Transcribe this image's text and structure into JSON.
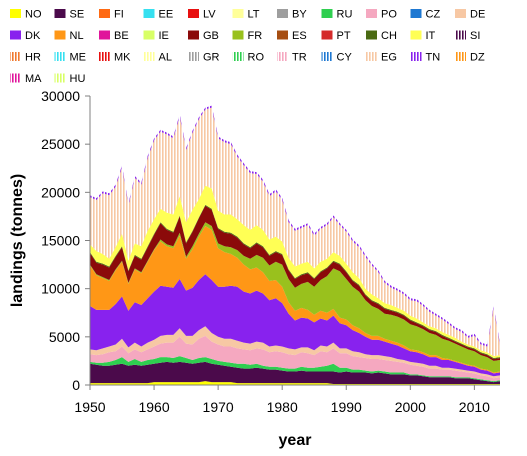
{
  "chart_data": {
    "type": "area",
    "stacked": true,
    "xlabel": "year",
    "ylabel": "landings (tonnes)",
    "xlim": [
      1950,
      2014
    ],
    "ylim": [
      0,
      30000
    ],
    "x_ticks": [
      1950,
      1960,
      1970,
      1980,
      1990,
      2000,
      2010
    ],
    "y_ticks": [
      0,
      5000,
      10000,
      15000,
      20000,
      25000,
      30000
    ],
    "grid": false,
    "legend_position": "top",
    "note": "",
    "legend": [
      {
        "name": "NO",
        "color": "#ffff00",
        "pattern": "solid"
      },
      {
        "name": "SE",
        "color": "#4b0a4b",
        "pattern": "solid"
      },
      {
        "name": "FI",
        "color": "#ff6a13",
        "pattern": "solid"
      },
      {
        "name": "EE",
        "color": "#36e0f0",
        "pattern": "solid"
      },
      {
        "name": "LV",
        "color": "#e81010",
        "pattern": "solid"
      },
      {
        "name": "LT",
        "color": "#ffff9a",
        "pattern": "solid"
      },
      {
        "name": "BY",
        "color": "#9e9e9e",
        "pattern": "solid"
      },
      {
        "name": "RU",
        "color": "#2fcf50",
        "pattern": "solid"
      },
      {
        "name": "PO",
        "color": "#f5a8c0",
        "pattern": "solid"
      },
      {
        "name": "CZ",
        "color": "#1e78d2",
        "pattern": "solid"
      },
      {
        "name": "DE",
        "color": "#f7c8a4",
        "pattern": "solid"
      },
      {
        "name": "DK",
        "color": "#8822ee",
        "pattern": "solid"
      },
      {
        "name": "NL",
        "color": "#ff9716",
        "pattern": "solid"
      },
      {
        "name": "BE",
        "color": "#e0159b",
        "pattern": "solid"
      },
      {
        "name": "IE",
        "color": "#d8ff66",
        "pattern": "solid"
      },
      {
        "name": "GB",
        "color": "#8b0a0a",
        "pattern": "solid"
      },
      {
        "name": "FR",
        "color": "#99c11d",
        "pattern": "solid"
      },
      {
        "name": "ES",
        "color": "#a64e12",
        "pattern": "solid"
      },
      {
        "name": "PT",
        "color": "#d42a2a",
        "pattern": "solid"
      },
      {
        "name": "CH",
        "color": "#4a6a12",
        "pattern": "solid"
      },
      {
        "name": "IT",
        "color": "#ffff55",
        "pattern": "solid"
      },
      {
        "name": "SI",
        "color": "#4b0a4b",
        "pattern": "striped"
      },
      {
        "name": "HR",
        "color": "#f07a30",
        "pattern": "striped"
      },
      {
        "name": "ME",
        "color": "#36e0f0",
        "pattern": "striped"
      },
      {
        "name": "MK",
        "color": "#e81010",
        "pattern": "striped"
      },
      {
        "name": "AL",
        "color": "#ffff9a",
        "pattern": "striped"
      },
      {
        "name": "GR",
        "color": "#9e9e9e",
        "pattern": "striped"
      },
      {
        "name": "RO",
        "color": "#2fcf50",
        "pattern": "striped"
      },
      {
        "name": "TR",
        "color": "#f5a8c0",
        "pattern": "striped"
      },
      {
        "name": "CY",
        "color": "#1e78d2",
        "pattern": "striped"
      },
      {
        "name": "EG",
        "color": "#f7c8a4",
        "pattern": "striped"
      },
      {
        "name": "TN",
        "color": "#8822ee",
        "pattern": "striped"
      },
      {
        "name": "DZ",
        "color": "#ff9716",
        "pattern": "striped"
      },
      {
        "name": "MA",
        "color": "#e0159b",
        "pattern": "striped"
      },
      {
        "name": "HU",
        "color": "#d8ff66",
        "pattern": "striped"
      }
    ],
    "x": [
      1950,
      1951,
      1952,
      1953,
      1954,
      1955,
      1956,
      1957,
      1958,
      1959,
      1960,
      1961,
      1962,
      1963,
      1964,
      1965,
      1966,
      1967,
      1968,
      1969,
      1970,
      1971,
      1972,
      1973,
      1974,
      1975,
      1976,
      1977,
      1978,
      1979,
      1980,
      1981,
      1982,
      1983,
      1984,
      1985,
      1986,
      1987,
      1988,
      1989,
      1990,
      1991,
      1992,
      1993,
      1994,
      1995,
      1996,
      1997,
      1998,
      1999,
      2000,
      2001,
      2002,
      2003,
      2004,
      2005,
      2006,
      2007,
      2008,
      2009,
      2010,
      2011,
      2012,
      2013,
      2014
    ],
    "series": [
      {
        "name": "NO",
        "color": "#ffff00",
        "pattern": "solid",
        "values": [
          200,
          200,
          200,
          200,
          200,
          200,
          200,
          200,
          200,
          200,
          300,
          300,
          300,
          300,
          300,
          300,
          300,
          300,
          400,
          300,
          300,
          300,
          300,
          200,
          200,
          200,
          200,
          200,
          200,
          200,
          200,
          200,
          200,
          200,
          200,
          200,
          200,
          200,
          100,
          100,
          100,
          100,
          100,
          100,
          100,
          100,
          100,
          100,
          100,
          100,
          100,
          100,
          100,
          100,
          100,
          100,
          100,
          100,
          100,
          100,
          100,
          100,
          100,
          100,
          100
        ]
      },
      {
        "name": "SE",
        "color": "#4b0a4b",
        "pattern": "solid",
        "values": [
          2000,
          1900,
          1800,
          1800,
          1900,
          2000,
          1800,
          1900,
          1800,
          1900,
          1900,
          2000,
          2100,
          2000,
          2100,
          2000,
          1900,
          2000,
          2000,
          1900,
          1800,
          1700,
          1600,
          1600,
          1500,
          1500,
          1600,
          1500,
          1400,
          1400,
          1300,
          1200,
          1200,
          1300,
          1200,
          1200,
          1200,
          1200,
          1300,
          1200,
          1300,
          1200,
          1200,
          1200,
          1100,
          1200,
          1100,
          1000,
          1000,
          1000,
          900,
          900,
          800,
          700,
          700,
          700,
          700,
          600,
          600,
          600,
          500,
          400,
          300,
          200,
          300
        ]
      },
      {
        "name": "RU",
        "color": "#2fcf50",
        "pattern": "solid",
        "values": [
          200,
          200,
          300,
          400,
          500,
          700,
          400,
          600,
          400,
          500,
          500,
          600,
          500,
          500,
          600,
          500,
          400,
          500,
          500,
          500,
          400,
          400,
          400,
          400,
          500,
          400,
          400,
          300,
          300,
          300,
          300,
          300,
          300,
          400,
          400,
          400,
          500,
          600,
          800,
          500,
          400,
          300,
          300,
          200,
          200,
          200,
          200,
          200,
          200,
          200,
          100,
          100,
          100,
          100,
          100,
          100,
          100,
          100,
          100,
          100,
          100,
          100,
          100,
          100,
          100
        ]
      },
      {
        "name": "PO",
        "color": "#f5a8c0",
        "pattern": "solid",
        "values": [
          800,
          800,
          900,
          1000,
          900,
          1100,
          900,
          1000,
          1000,
          1100,
          1300,
          1400,
          1500,
          1600,
          2000,
          1500,
          1600,
          2000,
          2200,
          1800,
          1700,
          1600,
          1700,
          1600,
          1500,
          1500,
          1600,
          1700,
          1500,
          1600,
          1600,
          1500,
          1400,
          1500,
          1500,
          1300,
          1600,
          1400,
          1600,
          1500,
          1500,
          1400,
          1300,
          1300,
          1300,
          1200,
          1200,
          1200,
          1100,
          1000,
          1000,
          900,
          900,
          800,
          800,
          700,
          700,
          700,
          600,
          500,
          500,
          400,
          400,
          300,
          300
        ]
      },
      {
        "name": "DE",
        "color": "#f7c8a4",
        "pattern": "solid",
        "values": [
          500,
          500,
          600,
          600,
          700,
          800,
          600,
          700,
          600,
          700,
          700,
          800,
          800,
          800,
          900,
          800,
          900,
          900,
          1000,
          900,
          800,
          800,
          800,
          800,
          700,
          700,
          700,
          700,
          600,
          600,
          600,
          600,
          600,
          500,
          600,
          500,
          600,
          600,
          600,
          500,
          500,
          500,
          500,
          400,
          400,
          400,
          400,
          400,
          300,
          300,
          300,
          300,
          300,
          300,
          300,
          200,
          200,
          200,
          200,
          200,
          200,
          200,
          200,
          200,
          200
        ]
      },
      {
        "name": "DK",
        "color": "#8822ee",
        "pattern": "solid",
        "values": [
          4500,
          4200,
          4000,
          3800,
          4200,
          4400,
          3800,
          4200,
          4300,
          4600,
          5000,
          5200,
          5000,
          4900,
          5100,
          4700,
          5000,
          5200,
          5400,
          5500,
          5200,
          5400,
          5500,
          5600,
          5300,
          5200,
          5300,
          5100,
          4800,
          4900,
          4500,
          3600,
          3000,
          3100,
          3000,
          2900,
          2800,
          2700,
          2800,
          2600,
          2400,
          2200,
          2000,
          1800,
          1600,
          1600,
          1500,
          1400,
          1400,
          1200,
          1100,
          1100,
          1000,
          900,
          900,
          800,
          800,
          700,
          600,
          500,
          500,
          400,
          400,
          300,
          300
        ]
      },
      {
        "name": "NL",
        "color": "#ff9716",
        "pattern": "solid",
        "values": [
          4200,
          3600,
          3300,
          3000,
          3500,
          3600,
          2800,
          3400,
          3300,
          3800,
          4300,
          4600,
          4200,
          4100,
          4500,
          3300,
          4000,
          4500,
          5000,
          5200,
          4000,
          3600,
          3300,
          3000,
          2800,
          2500,
          2400,
          2200,
          2000,
          1900,
          1700,
          1200,
          1000,
          1000,
          900,
          800,
          800,
          800,
          700,
          600,
          600,
          500,
          500,
          400,
          400,
          400,
          300,
          300,
          300,
          300,
          200,
          200,
          200,
          200,
          200,
          200,
          100,
          100,
          100,
          100,
          100,
          100,
          100,
          100,
          100
        ]
      },
      {
        "name": "FR",
        "color": "#99c11d",
        "pattern": "solid",
        "values": [
          100,
          100,
          100,
          100,
          100,
          100,
          100,
          100,
          100,
          100,
          100,
          200,
          200,
          200,
          300,
          200,
          300,
          300,
          400,
          400,
          500,
          600,
          700,
          800,
          900,
          1100,
          1300,
          1500,
          1600,
          1900,
          2300,
          2400,
          2400,
          2500,
          2900,
          2900,
          3200,
          3800,
          4200,
          4800,
          4200,
          4000,
          3800,
          3400,
          3100,
          2800,
          2600,
          2700,
          2700,
          2700,
          2600,
          2500,
          2400,
          2300,
          2100,
          2000,
          1900,
          1800,
          1700,
          1600,
          1500,
          1400,
          1300,
          1200,
          1200
        ]
      },
      {
        "name": "GB",
        "color": "#8b0a0a",
        "pattern": "solid",
        "values": [
          1200,
          1200,
          1300,
          1300,
          1300,
          1400,
          1200,
          1300,
          1300,
          1400,
          1500,
          1700,
          1500,
          1400,
          1700,
          1400,
          1500,
          1600,
          1700,
          1700,
          1500,
          1400,
          1400,
          1300,
          1200,
          1100,
          1200,
          1100,
          1000,
          1000,
          1000,
          900,
          900,
          900,
          900,
          800,
          800,
          800,
          700,
          700,
          700,
          600,
          600,
          500,
          500,
          500,
          500,
          400,
          400,
          400,
          400,
          300,
          300,
          300,
          300,
          300,
          200,
          200,
          200,
          200,
          200,
          200,
          200,
          200,
          200
        ]
      },
      {
        "name": "CH",
        "color": "#4a6a12",
        "pattern": "solid",
        "values": [
          100,
          100,
          100,
          100,
          100,
          100,
          100,
          100,
          100,
          100,
          100,
          100,
          100,
          100,
          100,
          100,
          100,
          100,
          100,
          100,
          100,
          100,
          100,
          100,
          100,
          100,
          100,
          100,
          100,
          100,
          100,
          100,
          100,
          100,
          100,
          100,
          100,
          100,
          100,
          100,
          100,
          100,
          100,
          100,
          100,
          100,
          100,
          100,
          100,
          100,
          100,
          100,
          100,
          100,
          100,
          100,
          100,
          100,
          100,
          100,
          100,
          100,
          100,
          100,
          100
        ]
      },
      {
        "name": "IT",
        "color": "#ffff55",
        "pattern": "solid",
        "values": [
          800,
          1100,
          1000,
          800,
          900,
          1300,
          1000,
          1200,
          1300,
          1600,
          1500,
          1400,
          1700,
          1800,
          2000,
          2100,
          2200,
          1900,
          2000,
          2100,
          1800,
          1800,
          1900,
          1800,
          1900,
          1800,
          1800,
          1700,
          1600,
          1500,
          1300,
          1200,
          1200,
          1100,
          1100,
          1000,
          1000,
          900,
          900,
          800,
          800,
          800,
          700,
          600,
          600,
          500,
          500,
          500,
          400,
          400,
          400,
          400,
          300,
          300,
          300,
          300,
          300,
          300,
          200,
          200,
          200,
          200,
          200,
          200,
          200
        ]
      },
      {
        "name": "EG",
        "color": "#f7c8a4",
        "pattern": "striped",
        "values": [
          4900,
          5300,
          6300,
          6600,
          6300,
          6900,
          5700,
          6800,
          6400,
          7600,
          8200,
          8000,
          8100,
          7900,
          8300,
          7500,
          8000,
          8300,
          7900,
          8400,
          7500,
          7500,
          7300,
          6500,
          6200,
          5900,
          5300,
          5000,
          4500,
          4700,
          4300,
          3700,
          3700,
          3700,
          3800,
          3400,
          3400,
          3500,
          3600,
          3200,
          3300,
          3200,
          3200,
          3300,
          3000,
          2700,
          2100,
          1800,
          1800,
          1700,
          1600,
          1800,
          1700,
          1500,
          1300,
          1300,
          1100,
          900,
          1000,
          700,
          1100,
          600,
          600,
          5000,
          1000
        ]
      },
      {
        "name": "TN",
        "color": "#8822ee",
        "pattern": "striped",
        "values": [
          200,
          200,
          200,
          200,
          200,
          200,
          200,
          200,
          200,
          200,
          200,
          200,
          200,
          200,
          200,
          200,
          200,
          200,
          200,
          200,
          200,
          200,
          200,
          200,
          200,
          200,
          200,
          200,
          200,
          200,
          200,
          200,
          200,
          200,
          200,
          200,
          200,
          200,
          200,
          200,
          200,
          200,
          200,
          200,
          200,
          200,
          200,
          200,
          200,
          200,
          200,
          200,
          200,
          200,
          200,
          200,
          200,
          200,
          200,
          200,
          200,
          200,
          200,
          200,
          200
        ]
      }
    ]
  }
}
